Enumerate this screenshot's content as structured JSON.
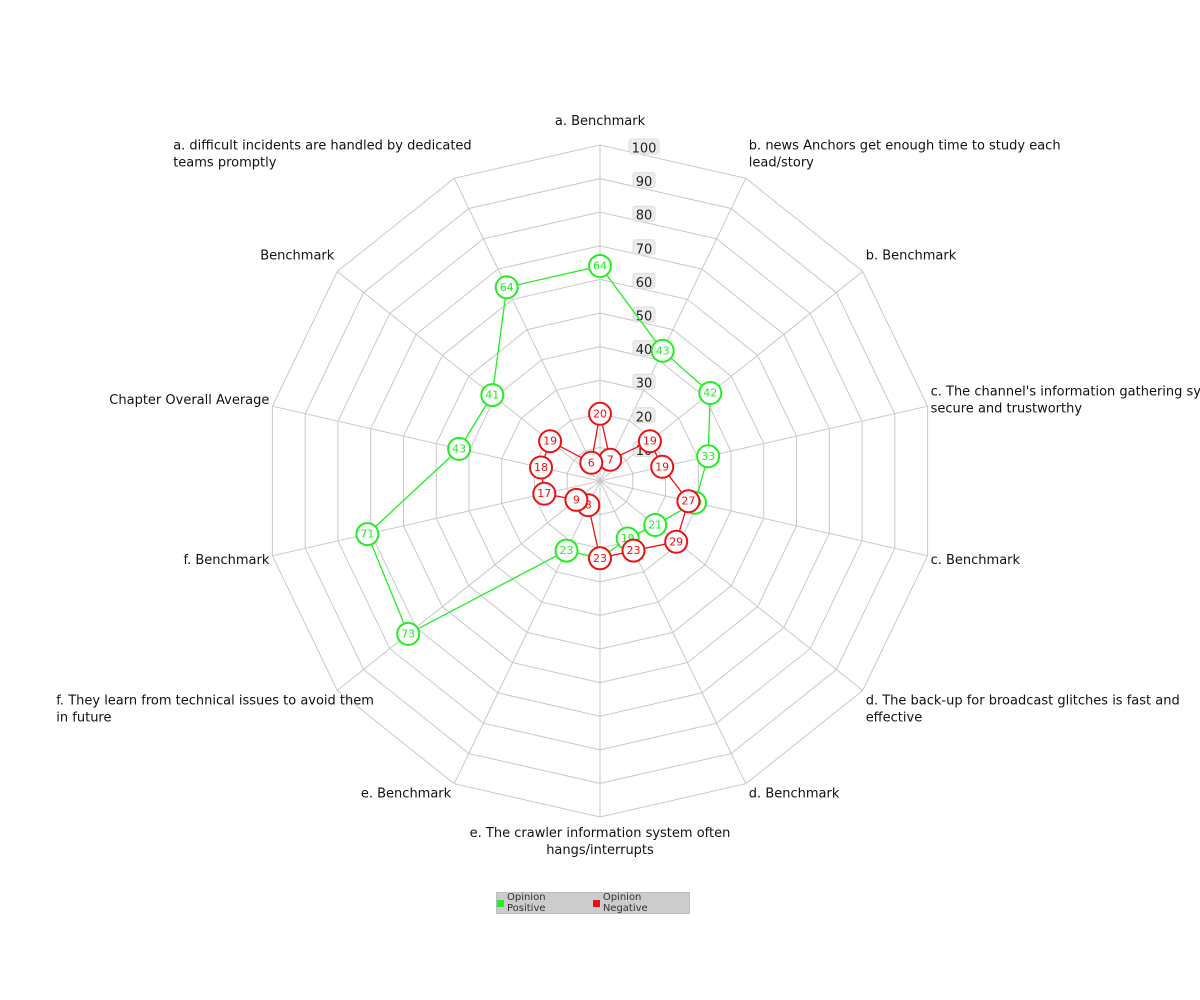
{
  "chart_data": {
    "type": "radar",
    "axis_max": 100,
    "ticks": [
      10,
      20,
      30,
      40,
      50,
      60,
      70,
      80,
      90,
      100
    ],
    "grid": true,
    "legend_position": "bottom-center",
    "axes": [
      {
        "label": [
          "a. Benchmark"
        ]
      },
      {
        "label": [
          "b. news Anchors get enough time to study each",
          "lead/story"
        ]
      },
      {
        "label": [
          "b. Benchmark"
        ]
      },
      {
        "label": [
          "c. The channel's information gathering system is",
          "secure and trustworthy"
        ]
      },
      {
        "label": [
          "c. Benchmark"
        ]
      },
      {
        "label": [
          "d. The back-up for broadcast glitches is fast and",
          "effective"
        ]
      },
      {
        "label": [
          "d. Benchmark"
        ]
      },
      {
        "label": [
          "e. The crawler information system often",
          "hangs/interrupts"
        ]
      },
      {
        "label": [
          "e. Benchmark"
        ]
      },
      {
        "label": [
          "f. They learn from technical issues to avoid them",
          "in future"
        ]
      },
      {
        "label": [
          "f. Benchmark"
        ]
      },
      {
        "label": [
          "Chapter Overall Average"
        ]
      },
      {
        "label": [
          "Benchmark"
        ]
      },
      {
        "label": [
          "a. difficult incidents are handled by dedicated",
          "teams promptly"
        ]
      }
    ],
    "series": [
      {
        "name": "Opinion Positive",
        "color": "#22ee22",
        "values": [
          64,
          43,
          42,
          33,
          29,
          21,
          19,
          23,
          23,
          73,
          71,
          43,
          41,
          64
        ]
      },
      {
        "name": "Opinion Negative",
        "color": "#ee1111",
        "values": [
          20,
          7,
          19,
          19,
          27,
          29,
          23,
          23,
          8,
          9,
          17,
          18,
          19,
          6
        ]
      }
    ]
  }
}
